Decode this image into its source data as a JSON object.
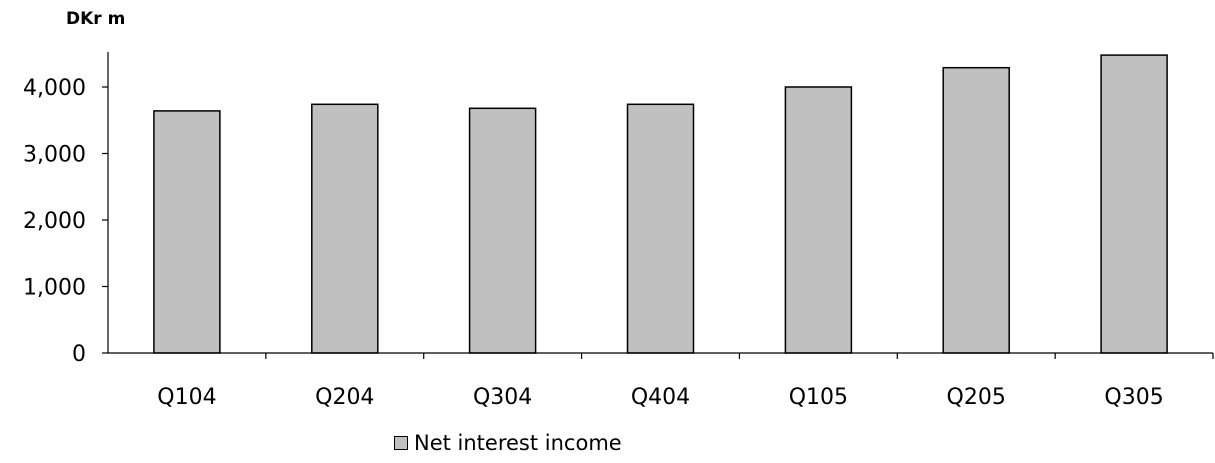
{
  "chart_data": {
    "type": "bar",
    "unit_label": "DKr m",
    "categories": [
      "Q104",
      "Q204",
      "Q304",
      "Q404",
      "Q105",
      "Q205",
      "Q305"
    ],
    "series": [
      {
        "name": "Net interest income",
        "values": [
          3640,
          3740,
          3680,
          3740,
          4000,
          4290,
          4480
        ]
      }
    ],
    "y_ticks": [
      0,
      1000,
      2000,
      3000,
      4000
    ],
    "y_tick_labels": [
      "0",
      "1,000",
      "2,000",
      "3,000",
      "4,000"
    ],
    "ylim": [
      0,
      4500
    ],
    "grid": false,
    "legend_position": "bottom",
    "bar_color": "#c0c0c0",
    "bar_edge_color": "#000000"
  }
}
